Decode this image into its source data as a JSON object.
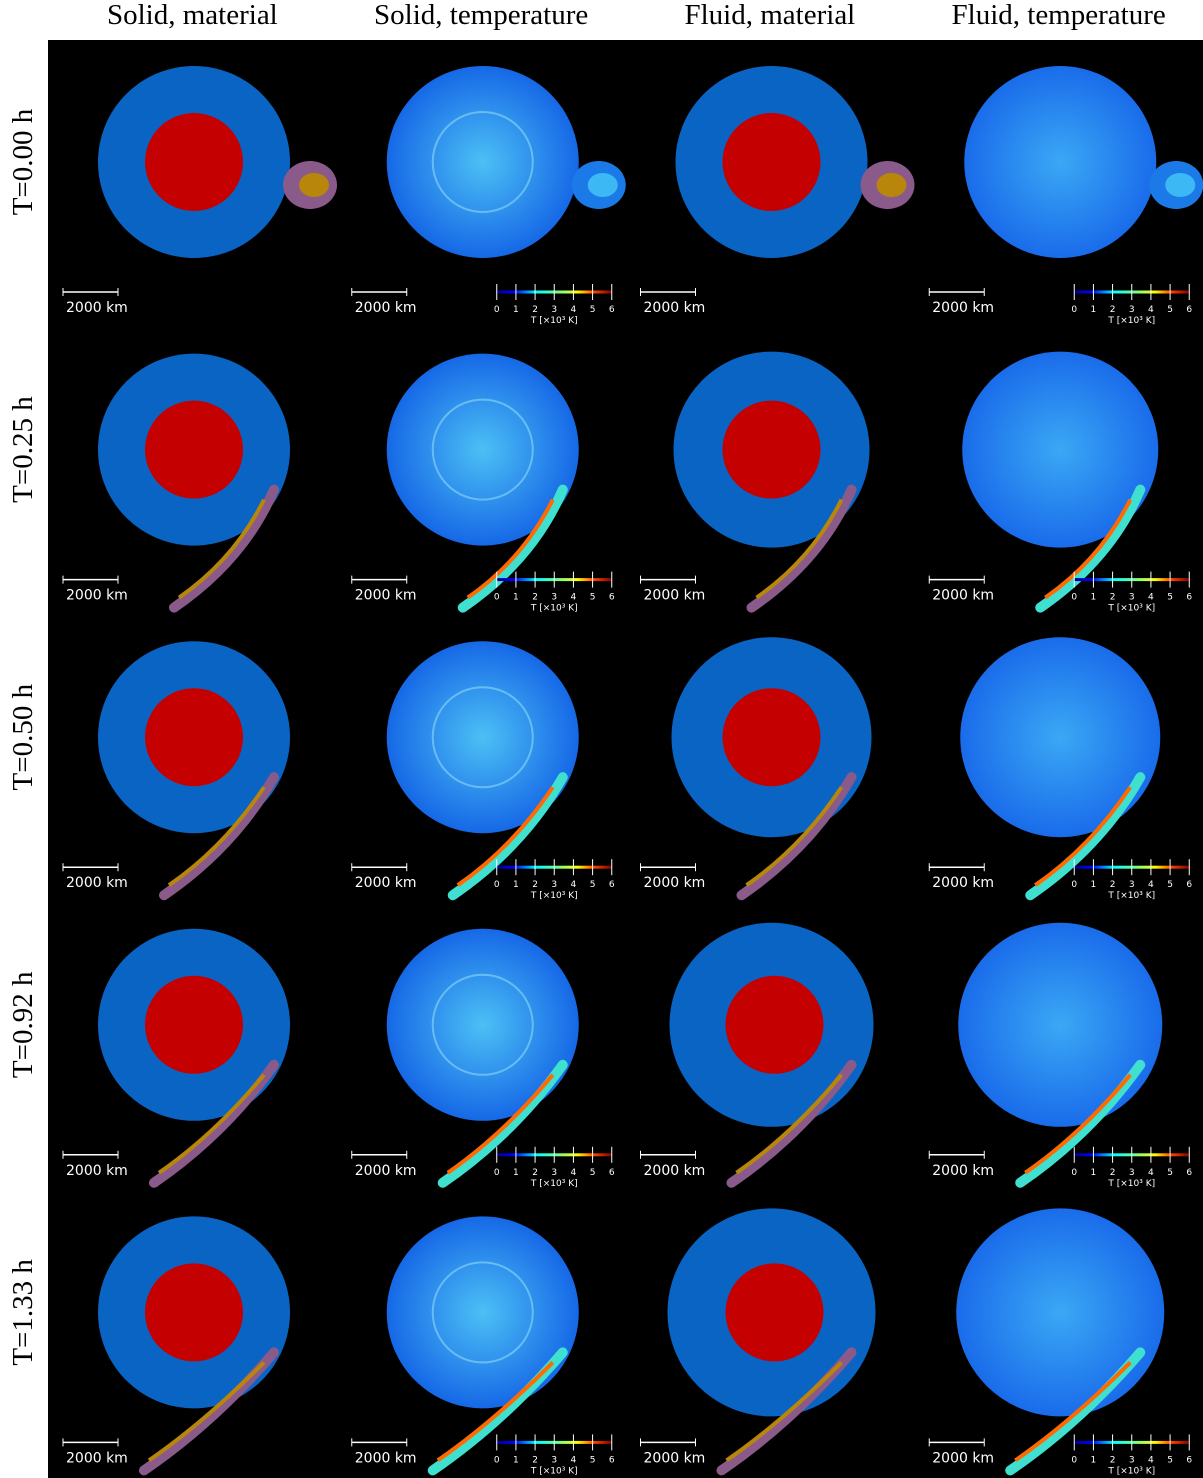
{
  "columns": [
    "Solid, material",
    "Solid, temperature",
    "Fluid, material",
    "Fluid, temperature"
  ],
  "rows": [
    "T=0.00 h",
    "T=0.25 h",
    "T=0.50 h",
    "T=0.92 h",
    "T=1.33 h"
  ],
  "scale_bar": "2000 km",
  "colorbar": {
    "ticks": [
      "0",
      "1",
      "2",
      "3",
      "4",
      "5",
      "6"
    ],
    "label": "T [×10³ K]"
  }
}
